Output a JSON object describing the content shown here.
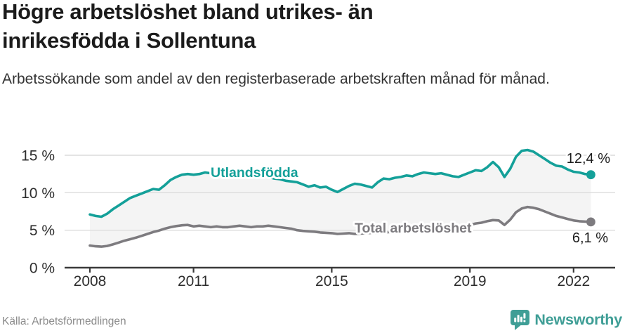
{
  "header": {
    "title": "Högre arbetslöshet bland utrikes- än inrikesfödda i Sollentuna",
    "subtitle": "Arbetssökande som andel av den registerbaserade arbetskraften månad för månad."
  },
  "chart_data": {
    "type": "line",
    "title": "Högre arbetslöshet bland utrikes- än inrikesfödda i Sollentuna",
    "xlabel": "",
    "ylabel": "",
    "grid": true,
    "legend": "inline-labels-on-lines",
    "fill_between_series": true,
    "fill_color": "#f4f4f4",
    "x_start_year": 2008,
    "x_step_years": 0.166667,
    "xlim": [
      2008,
      2022.5
    ],
    "ylim": [
      0,
      16.6
    ],
    "x_ticks": [
      2008,
      2011,
      2015,
      2019,
      2022
    ],
    "y_ticks": [
      0,
      5,
      10,
      15
    ],
    "y_tick_suffix": " %",
    "series": [
      {
        "name": "Utlandsfödda",
        "color": "#14a099",
        "end_label": "12,4 %",
        "end_value": 12.4,
        "values": [
          7.1,
          6.9,
          6.8,
          7.2,
          7.8,
          8.3,
          8.8,
          9.3,
          9.6,
          9.9,
          10.2,
          10.5,
          10.4,
          11.0,
          11.7,
          12.1,
          12.4,
          12.5,
          12.4,
          12.5,
          12.7,
          12.6,
          12.5,
          12.6,
          12.7,
          12.6,
          12.4,
          12.5,
          12.4,
          12.3,
          12.2,
          12.1,
          11.9,
          11.8,
          11.6,
          11.5,
          11.4,
          11.1,
          10.8,
          11.0,
          10.7,
          10.8,
          10.4,
          10.1,
          10.5,
          10.9,
          11.2,
          11.1,
          10.9,
          10.7,
          11.4,
          11.9,
          11.8,
          12.0,
          12.1,
          12.3,
          12.2,
          12.5,
          12.7,
          12.6,
          12.5,
          12.6,
          12.4,
          12.2,
          12.1,
          12.4,
          12.7,
          13.0,
          12.9,
          13.4,
          14.1,
          13.4,
          12.1,
          13.2,
          14.8,
          15.6,
          15.7,
          15.5,
          15.0,
          14.5,
          14.0,
          13.6,
          13.5,
          13.1,
          12.8,
          12.7,
          12.5,
          12.4
        ]
      },
      {
        "name": "Total arbetslöshet",
        "color": "#7d7b7f",
        "end_label": "6,1 %",
        "end_value": 6.1,
        "values": [
          2.95,
          2.85,
          2.8,
          2.9,
          3.1,
          3.35,
          3.6,
          3.8,
          4.0,
          4.25,
          4.5,
          4.75,
          4.95,
          5.2,
          5.4,
          5.55,
          5.65,
          5.7,
          5.5,
          5.6,
          5.5,
          5.4,
          5.5,
          5.4,
          5.4,
          5.5,
          5.6,
          5.5,
          5.4,
          5.5,
          5.5,
          5.6,
          5.5,
          5.4,
          5.3,
          5.2,
          5.0,
          4.9,
          4.85,
          4.8,
          4.7,
          4.65,
          4.6,
          4.5,
          4.55,
          4.6,
          4.5,
          4.55,
          4.6,
          4.65,
          4.6,
          4.7,
          4.75,
          4.8,
          4.85,
          4.9,
          4.95,
          5.0,
          5.1,
          5.15,
          5.2,
          5.3,
          5.35,
          5.45,
          5.5,
          5.6,
          5.7,
          5.9,
          6.0,
          6.2,
          6.35,
          6.3,
          5.7,
          6.4,
          7.4,
          7.9,
          8.1,
          8.0,
          7.8,
          7.5,
          7.2,
          6.9,
          6.7,
          6.5,
          6.3,
          6.2,
          6.15,
          6.1
        ]
      }
    ]
  },
  "footer": {
    "source": "Källa: Arbetsförmedlingen",
    "brand": "Newsworthy"
  },
  "colors": {
    "accent_teal": "#14a099",
    "line_gray": "#7d7b7f",
    "brand_teal": "#3f9e96",
    "fill_light": "#f4f4f4",
    "grid": "#dcdcdc",
    "axis": "#3a3a3a",
    "text_dark": "#1d1d1d",
    "text_muted": "#8b8b8b"
  },
  "icons": {
    "brand_logo": "newsworthy-chart-bubble-icon"
  }
}
